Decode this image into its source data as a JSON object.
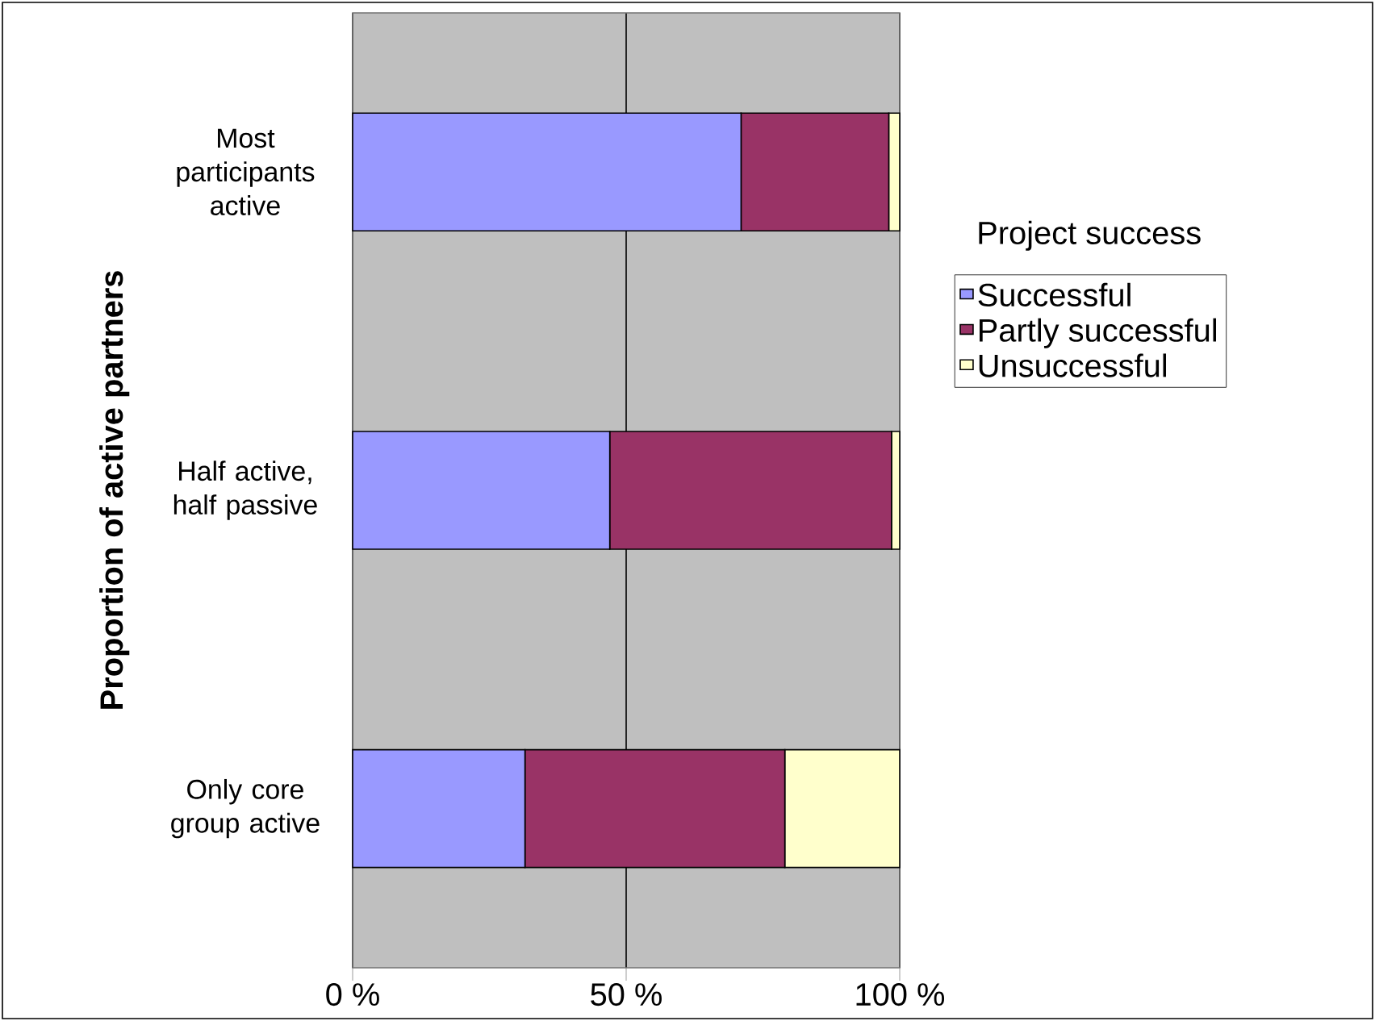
{
  "chart_data": {
    "type": "bar",
    "orientation": "horizontal",
    "stacked": true,
    "ylabel": "Proportion of active partners",
    "legend_title": "Project success",
    "categories": [
      "Most participants active",
      "Half active, half passive",
      "Only core group active"
    ],
    "series": [
      {
        "name": "Successful",
        "color": "#9999ff",
        "values": [
          71,
          47,
          31.5
        ]
      },
      {
        "name": "Partly successful",
        "color": "#993366",
        "values": [
          27,
          51.5,
          47.5
        ]
      },
      {
        "name": "Unsuccessful",
        "color": "#ffffcc",
        "values": [
          2,
          1.5,
          21
        ]
      }
    ],
    "xlim": [
      0,
      100
    ],
    "xticks": [
      {
        "value": 0,
        "label": "0 %"
      },
      {
        "value": 50,
        "label": "50 %"
      },
      {
        "value": 100,
        "label": "100 %"
      }
    ],
    "grid": "x",
    "legend": "right"
  }
}
